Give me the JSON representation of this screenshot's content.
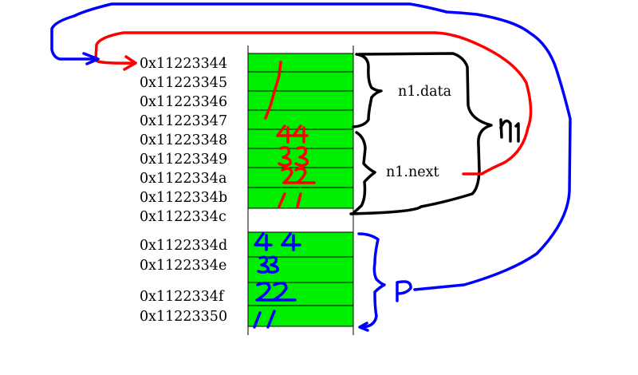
{
  "memory": {
    "block1": {
      "rows": [
        {
          "address": "0x11223344"
        },
        {
          "address": "0x11223345"
        },
        {
          "address": "0x11223346"
        },
        {
          "address": "0x11223347"
        },
        {
          "address": "0x11223348"
        },
        {
          "address": "0x11223349"
        },
        {
          "address": "0x1122334a"
        },
        {
          "address": "0x1122334b"
        }
      ]
    },
    "gap_row": {
      "address": "0x1122334c"
    },
    "block2": {
      "rows": [
        {
          "address": "0x1122334d"
        },
        {
          "address": "0x1122334e"
        },
        {
          "address": "0x1122334f"
        },
        {
          "address": "0x11223350"
        }
      ]
    }
  },
  "labels": {
    "n1_data": "n1.data",
    "n1_next": "n1.next"
  },
  "handwritten": {
    "n1_data_value": "1",
    "n1_next_bytes": [
      "44",
      "33",
      "22",
      "11"
    ],
    "p_bytes": [
      "44",
      "33",
      "22",
      "11"
    ],
    "n1_label": "n1",
    "p_label": "P"
  },
  "colors": {
    "cell_fill": "#00ee00",
    "pen_red": "#ff0000",
    "pen_blue": "#0000ff",
    "pen_black": "#000000"
  }
}
